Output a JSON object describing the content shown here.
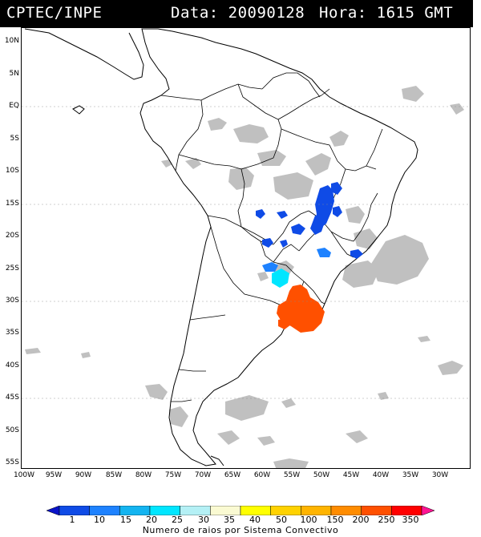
{
  "header": {
    "source": "CPTEC/INPE",
    "date_label": "Data: 20090128",
    "time_label": "Hora: 1615 GMT"
  },
  "map": {
    "lat_labels": [
      "10N",
      "5N",
      "EQ",
      "5S",
      "10S",
      "15S",
      "20S",
      "25S",
      "30S",
      "35S",
      "40S",
      "45S",
      "50S",
      "55S"
    ],
    "lon_labels": [
      "100W",
      "95W",
      "90W",
      "85W",
      "80W",
      "75W",
      "70W",
      "65W",
      "60W",
      "55W",
      "50W",
      "45W",
      "40W",
      "35W",
      "30W"
    ]
  },
  "colorbar": {
    "title": "Numero de raios por Sistema Convectivo",
    "labels": [
      "1",
      "10",
      "15",
      "20",
      "25",
      "30",
      "35",
      "40",
      "50",
      "100",
      "150",
      "200",
      "250",
      "350"
    ],
    "colors": [
      "#0a14c8",
      "#0f4be6",
      "#1e82ff",
      "#14b4f0",
      "#00e6ff",
      "#b4f0f5",
      "#fafad2",
      "#ffff00",
      "#ffd200",
      "#ffb400",
      "#ff8c00",
      "#ff5000",
      "#ff0000",
      "#ff1493"
    ]
  }
}
